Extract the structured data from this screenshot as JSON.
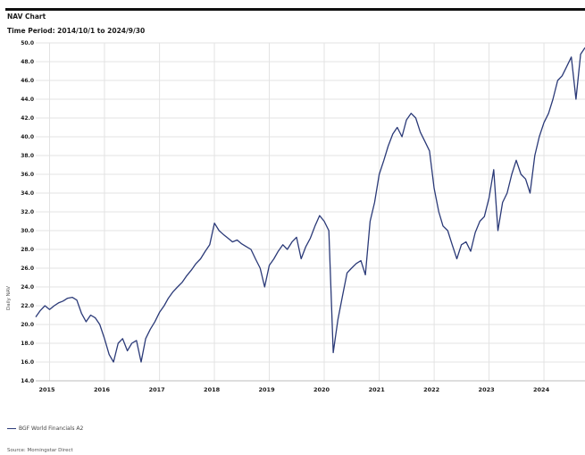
{
  "header": {
    "title": "NAV Chart",
    "subtitle": "Time Period: 2014/10/1 to 2024/9/30"
  },
  "footer": {
    "source": "Source: Morningstar Direct"
  },
  "colors": {
    "series": "#2b3a78",
    "grid": "#e3e3e3",
    "text": "#1a1a1a"
  },
  "chart_data": {
    "type": "line",
    "title": "NAV Chart",
    "subtitle": "Time Period: 2014/10/1 to 2024/9/30",
    "xlabel": "",
    "ylabel": "Daily NAV",
    "ylim": [
      14.0,
      50.0
    ],
    "xlim": [
      "2014-10-01",
      "2024-09-30"
    ],
    "y_ticks": [
      "14.0",
      "16.0",
      "18.0",
      "20.0",
      "22.0",
      "24.0",
      "26.0",
      "28.0",
      "30.0",
      "32.0",
      "34.0",
      "36.0",
      "38.0",
      "40.0",
      "42.0",
      "44.0",
      "46.0",
      "48.0",
      "50.0"
    ],
    "x_ticks": [
      "2015",
      "2016",
      "2017",
      "2018",
      "2019",
      "2020",
      "2021",
      "2022",
      "2023",
      "2024"
    ],
    "grid": true,
    "legend_position": "bottom-left",
    "series": [
      {
        "name": "BGF World Financials A2",
        "x": [
          "2014-10-01",
          "2014-11-01",
          "2014-12-01",
          "2015-01-01",
          "2015-02-01",
          "2015-03-01",
          "2015-04-01",
          "2015-05-01",
          "2015-06-01",
          "2015-07-01",
          "2015-08-01",
          "2015-09-01",
          "2015-10-01",
          "2015-11-01",
          "2015-12-01",
          "2016-01-01",
          "2016-02-01",
          "2016-03-01",
          "2016-04-01",
          "2016-05-01",
          "2016-06-01",
          "2016-07-01",
          "2016-08-01",
          "2016-09-01",
          "2016-10-01",
          "2016-11-01",
          "2016-12-01",
          "2017-01-01",
          "2017-02-01",
          "2017-03-01",
          "2017-04-01",
          "2017-05-01",
          "2017-06-01",
          "2017-07-01",
          "2017-08-01",
          "2017-09-01",
          "2017-10-01",
          "2017-11-01",
          "2017-12-01",
          "2018-01-01",
          "2018-02-01",
          "2018-03-01",
          "2018-04-01",
          "2018-05-01",
          "2018-06-01",
          "2018-07-01",
          "2018-08-01",
          "2018-09-01",
          "2018-10-01",
          "2018-11-01",
          "2018-12-01",
          "2019-01-01",
          "2019-02-01",
          "2019-03-01",
          "2019-04-01",
          "2019-05-01",
          "2019-06-01",
          "2019-07-01",
          "2019-08-01",
          "2019-09-01",
          "2019-10-01",
          "2019-11-01",
          "2019-12-01",
          "2020-01-01",
          "2020-02-01",
          "2020-03-01",
          "2020-04-01",
          "2020-05-01",
          "2020-06-01",
          "2020-07-01",
          "2020-08-01",
          "2020-09-01",
          "2020-10-01",
          "2020-11-01",
          "2020-12-01",
          "2021-01-01",
          "2021-02-01",
          "2021-03-01",
          "2021-04-01",
          "2021-05-01",
          "2021-06-01",
          "2021-07-01",
          "2021-08-01",
          "2021-09-01",
          "2021-10-01",
          "2021-11-01",
          "2021-12-01",
          "2022-01-01",
          "2022-02-01",
          "2022-03-01",
          "2022-04-01",
          "2022-05-01",
          "2022-06-01",
          "2022-07-01",
          "2022-08-01",
          "2022-09-01",
          "2022-10-01",
          "2022-11-01",
          "2022-12-01",
          "2023-01-01",
          "2023-02-01",
          "2023-03-01",
          "2023-04-01",
          "2023-05-01",
          "2023-06-01",
          "2023-07-01",
          "2023-08-01",
          "2023-09-01",
          "2023-10-01",
          "2023-11-01",
          "2023-12-01",
          "2024-01-01",
          "2024-02-01",
          "2024-03-01",
          "2024-04-01",
          "2024-05-01",
          "2024-06-01",
          "2024-07-01",
          "2024-08-01",
          "2024-09-01",
          "2024-09-30"
        ],
        "values": [
          20.8,
          21.5,
          22.0,
          21.6,
          22.0,
          22.3,
          22.5,
          22.8,
          22.9,
          22.6,
          21.2,
          20.3,
          21.0,
          20.7,
          20.0,
          18.5,
          16.8,
          16.0,
          18.0,
          18.5,
          17.2,
          18.0,
          18.3,
          16.0,
          18.5,
          19.5,
          20.3,
          21.3,
          22.0,
          22.8,
          23.5,
          24.0,
          24.5,
          25.2,
          25.8,
          26.5,
          27.0,
          27.8,
          28.5,
          30.8,
          30.0,
          29.6,
          29.2,
          28.8,
          29.0,
          28.6,
          28.3,
          28.0,
          27.0,
          26.0,
          24.0,
          26.3,
          27.0,
          27.8,
          28.5,
          28.0,
          28.8,
          29.3,
          27.0,
          28.3,
          29.2,
          30.5,
          31.6,
          31.0,
          30.0,
          17.0,
          20.5,
          23.0,
          25.5,
          26.0,
          26.5,
          26.8,
          25.3,
          31.0,
          33.0,
          36.0,
          37.5,
          39.0,
          40.3,
          41.0,
          40.0,
          41.8,
          42.5,
          42.0,
          40.5,
          39.5,
          38.5,
          34.5,
          32.0,
          30.5,
          30.0,
          28.5,
          27.0,
          28.5,
          28.8,
          27.8,
          29.8,
          31.0,
          31.5,
          33.5,
          36.5,
          30.0,
          33.0,
          34.0,
          36.0,
          37.5,
          36.0,
          35.5,
          34.0,
          38.0,
          40.0,
          41.5,
          42.5,
          44.0,
          46.0,
          46.5,
          47.5,
          48.5,
          44.0,
          48.8,
          49.5
        ]
      }
    ]
  }
}
